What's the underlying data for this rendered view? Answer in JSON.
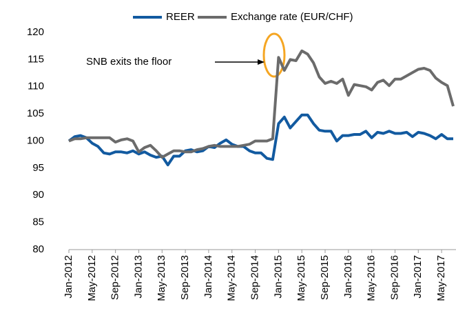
{
  "chart_data": {
    "type": "line",
    "categories": [
      "Jan-2012",
      null,
      null,
      null,
      "May-2012",
      null,
      null,
      null,
      "Sep-2012",
      null,
      null,
      null,
      "Jan-2013",
      null,
      null,
      null,
      "May-2013",
      null,
      null,
      null,
      "Sep-2013",
      null,
      null,
      null,
      "Jan-2014",
      null,
      null,
      null,
      "May-2014",
      null,
      null,
      null,
      "Sep-2014",
      null,
      null,
      null,
      "Jan-2015",
      null,
      null,
      null,
      "May-2015",
      null,
      null,
      null,
      "Sep-2015",
      null,
      null,
      null,
      "Jan-2016",
      null,
      null,
      null,
      "May-2016",
      null,
      null,
      null,
      "Sep-2016",
      null,
      null,
      null,
      "Jan-2017",
      null,
      null,
      null,
      "May-2017",
      null,
      null
    ],
    "series": [
      {
        "name": "REER",
        "color": "#125aa0",
        "values": [
          100,
          100.8,
          101,
          100.6,
          99.6,
          99,
          97.8,
          97.6,
          98,
          98,
          97.8,
          98.2,
          97.6,
          98,
          97.4,
          97,
          97.2,
          95.6,
          97.2,
          97.2,
          98.2,
          98.4,
          98,
          98.2,
          99,
          98.8,
          99.6,
          100.2,
          99.4,
          99,
          99,
          98.2,
          97.8,
          97.8,
          96.8,
          96.6,
          103.2,
          104.4,
          102.4,
          103.6,
          104.8,
          104.8,
          103.2,
          102,
          101.8,
          101.8,
          100,
          101,
          101,
          101.2,
          101.2,
          101.8,
          100.6,
          101.6,
          101.4,
          101.8,
          101.4,
          101.4,
          101.6,
          100.8,
          101.6,
          101.4,
          101,
          100.4,
          101.2,
          100.4,
          100.4
        ]
      },
      {
        "name": "Exchange rate (EUR/CHF)",
        "color": "#6b6b6b",
        "values": [
          100,
          100.4,
          100.4,
          100.6,
          100.6,
          100.6,
          100.6,
          100.6,
          99.8,
          100.2,
          100.4,
          100,
          98,
          98.8,
          99.2,
          98.2,
          97,
          97.6,
          98.2,
          98.2,
          98,
          98,
          98.4,
          98.6,
          99,
          99.2,
          99,
          99,
          99,
          99,
          99.2,
          99.4,
          100,
          100,
          100,
          100.4,
          115.4,
          113,
          115,
          114.8,
          116.6,
          116,
          114.4,
          111.8,
          110.6,
          111,
          110.6,
          111.4,
          108.4,
          110.4,
          110.2,
          110,
          109.4,
          110.8,
          111.2,
          110.2,
          111.4,
          111.4,
          112,
          112.6,
          113.2,
          113.4,
          113,
          111.6,
          110.8,
          110.2,
          106.4
        ]
      }
    ],
    "annotation": "SNB exits the floor",
    "ylim": [
      80,
      120
    ],
    "yticks": [
      80,
      85,
      90,
      95,
      100,
      105,
      110,
      115,
      120
    ],
    "grid": false,
    "legend": "top"
  }
}
